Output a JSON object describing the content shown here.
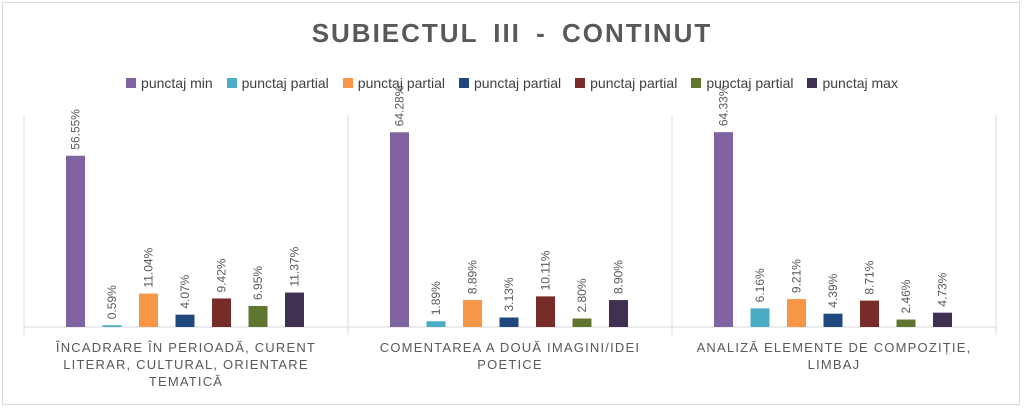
{
  "chart_data": {
    "type": "bar",
    "title": "SUBIECTUL III  -  CONTINUT",
    "categories": [
      "ÎNCADRARE ÎN PERIOADĂ, CURENT LITERAR, CULTURAL, ORIENTARE TEMATICĂ",
      "COMENTAREA A DOUĂ IMAGINI/IDEI POETICE",
      "ANALIZĂ ELEMENTE DE COMPOZIȚIE, LIMBAJ"
    ],
    "series": [
      {
        "name": "punctaj min",
        "color": "#8064a2",
        "values": [
          56.55,
          64.28,
          64.33
        ],
        "labels": [
          "56.55%",
          "64.28%",
          "64.33%"
        ]
      },
      {
        "name": "punctaj partial",
        "color": "#4bacc6",
        "values": [
          0.59,
          1.89,
          6.16
        ],
        "labels": [
          "0.59%",
          "1.89%",
          "6.16%"
        ]
      },
      {
        "name": "punctaj partial",
        "color": "#f79646",
        "values": [
          11.04,
          8.89,
          9.21
        ],
        "labels": [
          "11.04%",
          "8.89%",
          "9.21%"
        ]
      },
      {
        "name": "punctaj partial",
        "color": "#1f497d",
        "values": [
          4.07,
          3.13,
          4.39
        ],
        "labels": [
          "4.07%",
          "3.13%",
          "4.39%"
        ]
      },
      {
        "name": "punctaj partial",
        "color": "#772c2a",
        "values": [
          9.42,
          10.11,
          8.71
        ],
        "labels": [
          "9.42%",
          "10.11%",
          "8.71%"
        ]
      },
      {
        "name": "punctaj partial",
        "color": "#5f7530",
        "values": [
          6.95,
          2.8,
          2.46
        ],
        "labels": [
          "6.95%",
          "2.80%",
          "2.46%"
        ]
      },
      {
        "name": "punctaj max",
        "color": "#403152",
        "values": [
          11.37,
          8.9,
          4.73
        ],
        "labels": [
          "11.37%",
          "8.90%",
          "4.73%"
        ]
      }
    ],
    "ylim": [
      0,
      70
    ],
    "grid": false,
    "legend_position": "top"
  }
}
